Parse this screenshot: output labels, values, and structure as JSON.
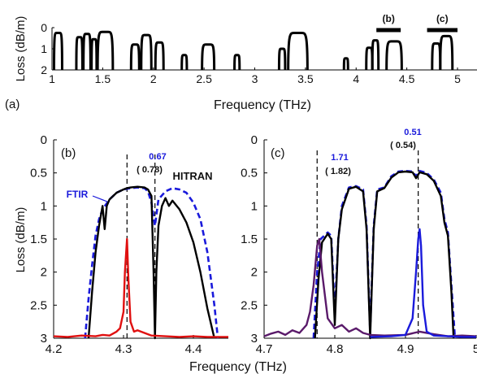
{
  "figure": {
    "xlabel": "Frequency (THz)",
    "ylabel": "Loss (dB/m)"
  },
  "chart_data": [
    {
      "panel": "(a)",
      "type": "line",
      "xlim": [
        1,
        5
      ],
      "ylim": [
        0,
        2
      ],
      "y_inverted": true,
      "xticks": [
        "1",
        "1.5",
        "2",
        "2.5",
        "3",
        "3.5",
        "4",
        "4.5",
        "5"
      ],
      "yticks": [
        "0",
        "1",
        "2"
      ],
      "xlabel": "Frequency (THz)",
      "ylabel": "Loss (dB/m)",
      "bands": [
        {
          "x0": 1.02,
          "x1": 1.1,
          "min": 0.25
        },
        {
          "x0": 1.24,
          "x1": 1.3,
          "min": 0.45
        },
        {
          "x0": 1.31,
          "x1": 1.38,
          "min": 0.3
        },
        {
          "x0": 1.39,
          "x1": 1.44,
          "min": 0.55
        },
        {
          "x0": 1.45,
          "x1": 1.6,
          "min": 0.2
        },
        {
          "x0": 1.78,
          "x1": 1.86,
          "min": 0.8
        },
        {
          "x0": 1.88,
          "x1": 1.98,
          "min": 0.35
        },
        {
          "x0": 2.02,
          "x1": 2.1,
          "min": 0.7
        },
        {
          "x0": 2.28,
          "x1": 2.33,
          "min": 1.3
        },
        {
          "x0": 2.48,
          "x1": 2.6,
          "min": 0.8
        },
        {
          "x0": 2.8,
          "x1": 2.85,
          "min": 1.3
        },
        {
          "x0": 3.24,
          "x1": 3.3,
          "min": 1.0
        },
        {
          "x0": 3.33,
          "x1": 3.52,
          "min": 0.25
        },
        {
          "x0": 3.88,
          "x1": 3.92,
          "min": 1.45
        },
        {
          "x0": 4.1,
          "x1": 4.16,
          "min": 0.95
        },
        {
          "x0": 4.16,
          "x1": 4.22,
          "min": 0.6
        },
        {
          "x0": 4.3,
          "x1": 4.45,
          "min": 0.65
        },
        {
          "x0": 4.75,
          "x1": 4.83,
          "min": 0.75
        },
        {
          "x0": 4.83,
          "x1": 4.95,
          "min": 0.4
        }
      ],
      "region_markers": [
        {
          "label": "(b)",
          "x0": 4.2,
          "x1": 4.44
        },
        {
          "label": "(c)",
          "x0": 4.7,
          "x1": 5.0
        }
      ]
    },
    {
      "panel": "(b)",
      "type": "line",
      "xlim": [
        4.2,
        4.45
      ],
      "ylim": [
        0,
        3
      ],
      "y_inverted": true,
      "xticks": [
        "4.2",
        "4.3",
        "4.4"
      ],
      "yticks": [
        "0",
        "0.5",
        "1",
        "1.5",
        "2",
        "2.5",
        "3"
      ],
      "series": [
        {
          "name": "FTIR",
          "color": "#1a1adb",
          "style": "dashed",
          "x": [
            4.245,
            4.25,
            4.255,
            4.26,
            4.265,
            4.27,
            4.28,
            4.29,
            4.3,
            4.31,
            4.32,
            4.33,
            4.335,
            4.34,
            4.345,
            4.35,
            4.36,
            4.37,
            4.38,
            4.39,
            4.4,
            4.41,
            4.42,
            4.43,
            4.435
          ],
          "y": [
            3.0,
            2.4,
            1.9,
            1.45,
            1.2,
            1.05,
            0.9,
            0.8,
            0.75,
            0.73,
            0.72,
            0.73,
            0.78,
            0.95,
            1.3,
            0.9,
            0.78,
            0.73,
            0.75,
            0.8,
            0.95,
            1.2,
            1.7,
            2.5,
            3.0
          ]
        },
        {
          "name": "HITRAN",
          "color": "#000000",
          "style": "solid",
          "x": [
            4.25,
            4.255,
            4.26,
            4.265,
            4.27,
            4.273,
            4.276,
            4.28,
            4.29,
            4.3,
            4.305,
            4.31,
            4.32,
            4.33,
            4.335,
            4.34,
            4.343,
            4.345,
            4.347,
            4.35,
            4.355,
            4.36,
            4.365,
            4.37,
            4.38,
            4.39,
            4.4,
            4.41,
            4.42,
            4.43
          ],
          "y": [
            3.0,
            2.3,
            1.7,
            1.3,
            1.0,
            1.35,
            1.0,
            0.9,
            0.8,
            0.75,
            0.73,
            0.72,
            0.71,
            0.72,
            0.75,
            0.85,
            2.0,
            3.0,
            2.0,
            1.3,
            1.0,
            0.88,
            1.0,
            0.92,
            1.05,
            1.25,
            1.55,
            2.0,
            2.55,
            3.0
          ]
        },
        {
          "name": "",
          "color": "#e01010",
          "style": "solid",
          "x": [
            4.2,
            4.22,
            4.24,
            4.26,
            4.27,
            4.28,
            4.29,
            4.295,
            4.3,
            4.302,
            4.305,
            4.307,
            4.31,
            4.315,
            4.32,
            4.33,
            4.34,
            4.36,
            4.38,
            4.4,
            4.42,
            4.45
          ],
          "y": [
            2.97,
            2.98,
            2.96,
            2.97,
            2.95,
            2.96,
            2.9,
            2.85,
            2.6,
            2.0,
            1.5,
            2.1,
            2.75,
            2.9,
            2.88,
            2.92,
            2.96,
            2.97,
            2.98,
            2.97,
            2.98,
            2.98
          ]
        }
      ],
      "vlines": [
        4.305,
        4.345
      ],
      "annotations": [
        {
          "text": "0.67",
          "color": "#1a1adb"
        },
        {
          "text": "( 0.78)",
          "color": "#000000"
        },
        {
          "text": "HITRAN",
          "color": "#000000"
        },
        {
          "text": "FTIR",
          "color": "#1a1adb"
        },
        {
          "text": "(b)",
          "color": "#000000"
        }
      ]
    },
    {
      "panel": "(c)",
      "type": "line",
      "xlim": [
        4.7,
        5.0
      ],
      "ylim": [
        0,
        3
      ],
      "y_inverted": true,
      "xticks": [
        "4.7",
        "4.8",
        "4.9",
        "5"
      ],
      "yticks": [
        "0",
        "0.5",
        "1",
        "1.5",
        "2",
        "2.5",
        "3"
      ],
      "series": [
        {
          "name": "",
          "color": "#1a1adb",
          "style": "dashed",
          "x": [
            4.77,
            4.775,
            4.78,
            4.79,
            4.795,
            4.8,
            4.805,
            4.81,
            4.82,
            4.83,
            4.84,
            4.845,
            4.85,
            4.855,
            4.86,
            4.87,
            4.88,
            4.89,
            4.9,
            4.91,
            4.915,
            4.92,
            4.93,
            4.94,
            4.95,
            4.955,
            4.96,
            4.965,
            4.97
          ],
          "y": [
            3.0,
            2.0,
            1.5,
            1.4,
            1.45,
            2.6,
            1.5,
            1.0,
            0.72,
            0.7,
            0.75,
            1.3,
            2.9,
            1.3,
            0.75,
            0.72,
            0.55,
            0.48,
            0.47,
            0.48,
            0.55,
            0.47,
            0.5,
            0.6,
            0.8,
            1.2,
            1.4,
            2.2,
            3.0
          ]
        },
        {
          "name": "",
          "color": "#000000",
          "style": "solid",
          "x": [
            4.772,
            4.777,
            4.782,
            4.79,
            4.795,
            4.8,
            4.805,
            4.81,
            4.82,
            4.83,
            4.84,
            4.845,
            4.85,
            4.855,
            4.86,
            4.87,
            4.88,
            4.89,
            4.9,
            4.91,
            4.915,
            4.92,
            4.93,
            4.94,
            4.95,
            4.955,
            4.96,
            4.965,
            4.968
          ],
          "y": [
            3.0,
            2.1,
            1.55,
            1.42,
            1.5,
            2.8,
            1.5,
            1.05,
            0.74,
            0.71,
            0.78,
            1.35,
            3.0,
            1.35,
            0.78,
            0.73,
            0.57,
            0.49,
            0.48,
            0.49,
            0.58,
            0.49,
            0.52,
            0.62,
            0.85,
            1.25,
            1.45,
            2.3,
            3.0
          ]
        },
        {
          "name": "",
          "color": "#5a1a6a",
          "style": "solid",
          "x": [
            4.7,
            4.71,
            4.72,
            4.73,
            4.74,
            4.75,
            4.76,
            4.765,
            4.77,
            4.775,
            4.778,
            4.782,
            4.79,
            4.8,
            4.81,
            4.82,
            4.83,
            4.84,
            4.85,
            4.87,
            4.9,
            4.92,
            4.94,
            4.96,
            4.98,
            5.0
          ],
          "y": [
            2.97,
            2.93,
            2.9,
            2.95,
            2.88,
            2.92,
            2.8,
            2.6,
            2.2,
            1.6,
            1.5,
            2.0,
            2.7,
            2.85,
            2.8,
            2.9,
            2.85,
            2.92,
            2.95,
            2.96,
            2.95,
            2.9,
            2.94,
            2.97,
            2.96,
            2.97
          ]
        },
        {
          "name": "",
          "color": "#1a1adb",
          "style": "solid",
          "x": [
            4.85,
            4.88,
            4.9,
            4.91,
            4.915,
            4.918,
            4.92,
            4.922,
            4.925,
            4.93,
            4.94,
            4.96,
            4.98,
            5.0
          ],
          "y": [
            2.98,
            2.97,
            2.95,
            2.7,
            2.0,
            1.5,
            1.35,
            1.6,
            2.5,
            2.9,
            2.96,
            2.97,
            2.98,
            2.98
          ]
        }
      ],
      "vlines": [
        4.775,
        4.918
      ],
      "annotations": [
        {
          "text": "1.71",
          "color": "#1a1adb"
        },
        {
          "text": "( 1.82)",
          "color": "#000000"
        },
        {
          "text": "0.51",
          "color": "#1a1adb"
        },
        {
          "text": "( 0.54)",
          "color": "#000000"
        },
        {
          "text": "(c)",
          "color": "#000000"
        }
      ]
    }
  ]
}
